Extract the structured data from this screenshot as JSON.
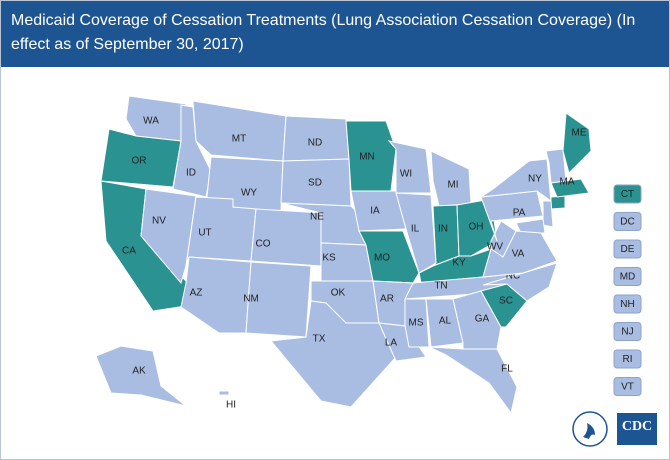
{
  "header": {
    "title": "Medicaid Coverage of Cessation Treatments (Lung Association Cessation Coverage) (In effect as of September 30, 2017)"
  },
  "colors": {
    "covered": "#2a9291",
    "not_covered": "#a9bde2"
  },
  "states": [
    {
      "label": "WA",
      "covered": false
    },
    {
      "label": "OR",
      "covered": true
    },
    {
      "label": "CA",
      "covered": true
    },
    {
      "label": "NV",
      "covered": false
    },
    {
      "label": "ID",
      "covered": false
    },
    {
      "label": "MT",
      "covered": false
    },
    {
      "label": "WY",
      "covered": false
    },
    {
      "label": "UT",
      "covered": false
    },
    {
      "label": "CO",
      "covered": false
    },
    {
      "label": "AZ",
      "covered": false
    },
    {
      "label": "NM",
      "covered": false
    },
    {
      "label": "ND",
      "covered": false
    },
    {
      "label": "SD",
      "covered": false
    },
    {
      "label": "NE",
      "covered": false
    },
    {
      "label": "KS",
      "covered": false
    },
    {
      "label": "OK",
      "covered": false
    },
    {
      "label": "TX",
      "covered": false
    },
    {
      "label": "MN",
      "covered": true
    },
    {
      "label": "IA",
      "covered": false
    },
    {
      "label": "MO",
      "covered": true
    },
    {
      "label": "AR",
      "covered": false
    },
    {
      "label": "LA",
      "covered": false
    },
    {
      "label": "WI",
      "covered": false
    },
    {
      "label": "IL",
      "covered": false
    },
    {
      "label": "MI",
      "covered": false
    },
    {
      "label": "IN",
      "covered": true
    },
    {
      "label": "OH",
      "covered": true
    },
    {
      "label": "KY",
      "covered": true
    },
    {
      "label": "TN",
      "covered": false
    },
    {
      "label": "MS",
      "covered": false
    },
    {
      "label": "AL",
      "covered": false
    },
    {
      "label": "GA",
      "covered": false
    },
    {
      "label": "FL",
      "covered": false
    },
    {
      "label": "SC",
      "covered": true
    },
    {
      "label": "NC",
      "covered": false
    },
    {
      "label": "VA",
      "covered": false
    },
    {
      "label": "WV",
      "covered": false
    },
    {
      "label": "PA",
      "covered": false
    },
    {
      "label": "NY",
      "covered": false
    },
    {
      "label": "ME",
      "covered": true
    },
    {
      "label": "MA",
      "covered": true
    },
    {
      "label": "AK",
      "covered": false
    },
    {
      "label": "HI",
      "covered": false
    }
  ],
  "small_states": [
    {
      "label": "CT",
      "covered": true
    },
    {
      "label": "DC",
      "covered": false
    },
    {
      "label": "DE",
      "covered": false
    },
    {
      "label": "MD",
      "covered": false
    },
    {
      "label": "NH",
      "covered": false
    },
    {
      "label": "NJ",
      "covered": false
    },
    {
      "label": "RI",
      "covered": false
    },
    {
      "label": "VT",
      "covered": false
    }
  ],
  "logos": {
    "cdc": "CDC"
  }
}
